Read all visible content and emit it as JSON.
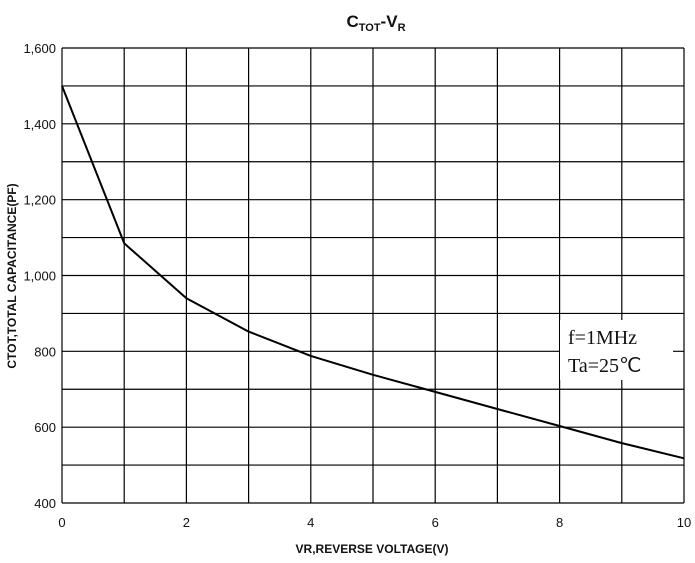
{
  "chart_data": {
    "type": "line",
    "title_parts": {
      "c": "C",
      "c_sub": "TOT",
      "dash": "-",
      "v": "V",
      "v_sub": "R"
    },
    "xlabel": "VR,REVERSE VOLTAGE(V)",
    "ylabel": "CTOT,TOTAL CAPACITANCE(PF)",
    "xlim": [
      0,
      10
    ],
    "ylim": [
      400,
      1600
    ],
    "x_ticks": [
      0,
      2,
      4,
      6,
      8,
      10
    ],
    "x_tick_labels": [
      "0",
      "2",
      "4",
      "6",
      "8",
      "10"
    ],
    "y_ticks": [
      400,
      600,
      800,
      1000,
      1200,
      1400,
      1600
    ],
    "y_tick_labels": [
      "400",
      "600",
      "800",
      "1,000",
      "1,200",
      "1,400",
      "1,600"
    ],
    "x_grid_step": 1,
    "y_grid_step": 100,
    "grid": true,
    "series": [
      {
        "x": [
          0,
          1,
          2,
          3,
          4,
          5,
          6,
          7,
          8,
          9,
          10
        ],
        "values": [
          1500,
          1085,
          940,
          852,
          788,
          738,
          693,
          648,
          603,
          558,
          518
        ]
      }
    ],
    "annotations": [
      "f=1MHz",
      "Ta=25℃"
    ],
    "line_color": "#000000",
    "grid_color": "#000000"
  }
}
